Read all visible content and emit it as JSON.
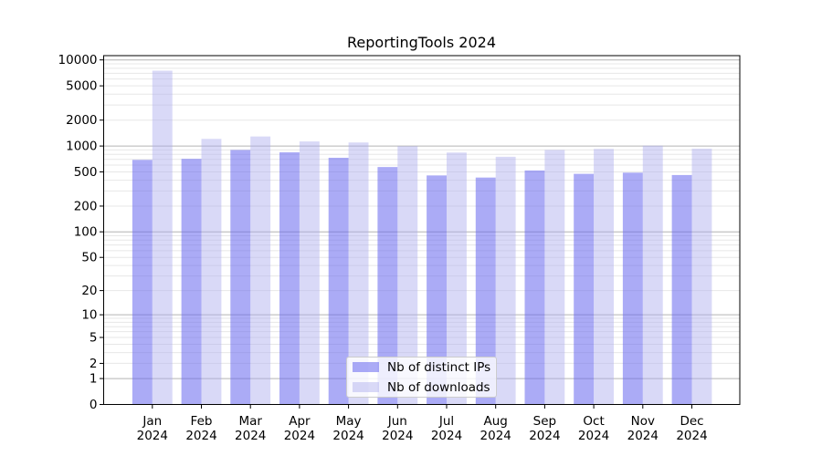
{
  "chart_data": {
    "type": "bar",
    "title": "ReportingTools 2024",
    "categories": [
      "Jan",
      "Feb",
      "Mar",
      "Apr",
      "May",
      "Jun",
      "Jul",
      "Aug",
      "Sep",
      "Oct",
      "Nov",
      "Dec"
    ],
    "category_second_line": "2024",
    "series": [
      {
        "name": "Nb of distinct IPs",
        "color": "rgba(102,102,238,0.55)",
        "values": [
          690,
          710,
          900,
          845,
          730,
          570,
          455,
          430,
          520,
          475,
          490,
          460
        ]
      },
      {
        "name": "Nb of downloads",
        "color": "rgba(170,170,238,0.45)",
        "values": [
          7500,
          1210,
          1290,
          1130,
          1100,
          995,
          840,
          750,
          900,
          925,
          1010,
          930
        ]
      }
    ],
    "yscale": "log1p",
    "yticks": [
      0,
      1,
      2,
      5,
      10,
      20,
      50,
      100,
      200,
      500,
      1000,
      2000,
      5000,
      10000
    ],
    "ylim": [
      0,
      11200
    ],
    "xlabel": "",
    "ylabel": "",
    "grid": "both",
    "legend_location": "lower center",
    "colors": {
      "major_grid": "#b4b4b4",
      "minor_grid": "#e7e7e7",
      "axis": "#000000",
      "text": "#000000",
      "legend_border": "#cccccc",
      "legend_bg": "rgba(255,255,255,0.8)"
    }
  }
}
